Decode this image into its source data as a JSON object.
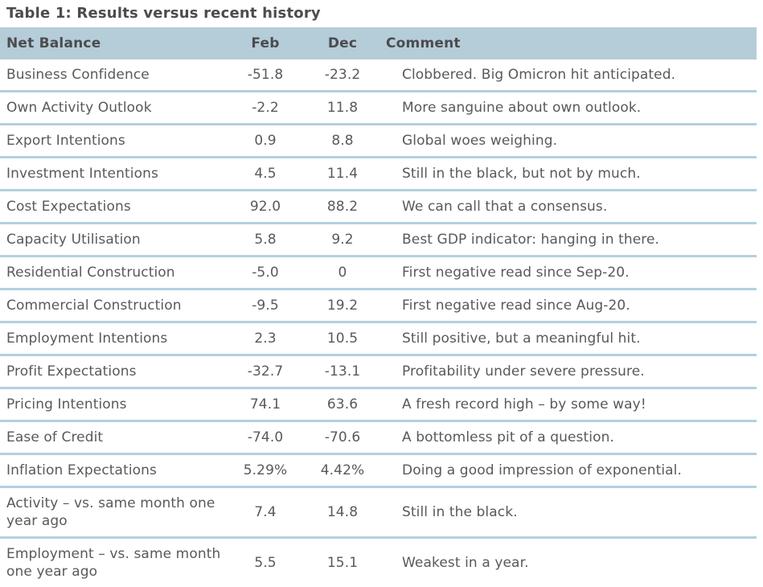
{
  "title": "Table 1: Results versus recent history",
  "colors": {
    "header_background": "#b5ccd9",
    "row_separator": "#b3d0df",
    "body_text": "#58595b",
    "header_text": "#4b4c4e",
    "title_text": "#4c4c4e",
    "page_background": "#ffffff"
  },
  "table": {
    "columns": {
      "label": "Net Balance",
      "feb": "Feb",
      "dec": "Dec",
      "comment": "Comment"
    },
    "rows": [
      {
        "label": "Business Confidence",
        "feb": "-51.8",
        "dec": "-23.2",
        "comment": "Clobbered. Big Omicron hit anticipated."
      },
      {
        "label": "Own Activity Outlook",
        "feb": "-2.2",
        "dec": "11.8",
        "comment": "More sanguine about own outlook."
      },
      {
        "label": "Export Intentions",
        "feb": "0.9",
        "dec": "8.8",
        "comment": "Global woes weighing."
      },
      {
        "label": "Investment Intentions",
        "feb": "4.5",
        "dec": "11.4",
        "comment": "Still in the black, but not by much."
      },
      {
        "label": "Cost Expectations",
        "feb": "92.0",
        "dec": "88.2",
        "comment": "We can call that a consensus."
      },
      {
        "label": "Capacity Utilisation",
        "feb": "5.8",
        "dec": "9.2",
        "comment": "Best GDP indicator: hanging in there."
      },
      {
        "label": "Residential Construction",
        "feb": "-5.0",
        "dec": "0",
        "comment": "First negative read since Sep-20."
      },
      {
        "label": "Commercial Construction",
        "feb": "-9.5",
        "dec": "19.2",
        "comment": "First negative read since Aug-20."
      },
      {
        "label": "Employment Intentions",
        "feb": "2.3",
        "dec": "10.5",
        "comment": "Still positive, but a meaningful hit."
      },
      {
        "label": "Profit Expectations",
        "feb": "-32.7",
        "dec": "-13.1",
        "comment": "Profitability under severe pressure."
      },
      {
        "label": "Pricing Intentions",
        "feb": "74.1",
        "dec": "63.6",
        "comment": "A fresh record high – by some way!"
      },
      {
        "label": "Ease of Credit",
        "feb": "-74.0",
        "dec": "-70.6",
        "comment": "A bottomless pit of a question."
      },
      {
        "label": "Inflation Expectations",
        "feb": "5.29%",
        "dec": "4.42%",
        "comment": "Doing a good impression of exponential."
      },
      {
        "label": "Activity – vs. same month one year ago",
        "feb": "7.4",
        "dec": "14.8",
        "comment": "Still in the black."
      },
      {
        "label": "Employment – vs. same month one year ago",
        "feb": "5.5",
        "dec": "15.1",
        "comment": "Weakest in a year."
      }
    ]
  }
}
